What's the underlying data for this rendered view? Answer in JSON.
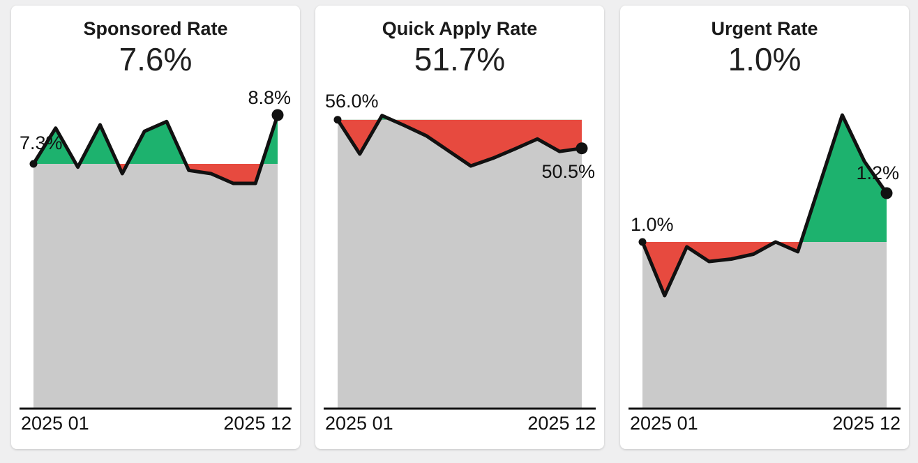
{
  "page": {
    "background_color": "#efeff0",
    "card_color": "#ffffff"
  },
  "colors": {
    "positive_area": "#1db26e",
    "negative_area": "#e74a3f",
    "base_area": "#cacaca",
    "line": "#111111",
    "text": "#1a1a1a"
  },
  "chart_data": [
    {
      "type": "area",
      "title": "Sponsored Rate",
      "current_value_label": "7.6%",
      "first_point_label": "7.3%",
      "last_point_label": "8.8%",
      "x_axis_start_label": "2025 01",
      "x_axis_end_label": "2025 12",
      "x": [
        "2025-01",
        "2025-02",
        "2025-03",
        "2025-04",
        "2025-05",
        "2025-06",
        "2025-07",
        "2025-08",
        "2025-09",
        "2025-10",
        "2025-11",
        "2025-12"
      ],
      "values": [
        7.3,
        8.4,
        7.2,
        8.5,
        7.0,
        8.3,
        8.6,
        7.1,
        7.0,
        6.7,
        6.7,
        8.8
      ],
      "baseline": 7.3,
      "unit": "%",
      "legend": "area above baseline green, below baseline red, under line gray",
      "grid": false
    },
    {
      "type": "area",
      "title": "Quick Apply Rate",
      "current_value_label": "51.7%",
      "first_point_label": "56.0%",
      "last_point_label": "50.5%",
      "x_axis_start_label": "2025 01",
      "x_axis_end_label": "2025 12",
      "x": [
        "2025-01",
        "2025-02",
        "2025-03",
        "2025-04",
        "2025-05",
        "2025-06",
        "2025-07",
        "2025-08",
        "2025-09",
        "2025-10",
        "2025-11",
        "2025-12"
      ],
      "values": [
        56.0,
        49.4,
        56.8,
        54.9,
        52.9,
        50.0,
        47.1,
        48.6,
        50.4,
        52.3,
        49.9,
        50.5
      ],
      "baseline": 56.0,
      "unit": "%",
      "legend": "area above baseline green, below baseline red, under line gray",
      "grid": false
    },
    {
      "type": "area",
      "title": "Urgent Rate",
      "current_value_label": "1.0%",
      "first_point_label": "1.0%",
      "last_point_label": "1.2%",
      "x_axis_start_label": "2025 01",
      "x_axis_end_label": "2025 12",
      "x": [
        "2025-01",
        "2025-02",
        "2025-03",
        "2025-04",
        "2025-05",
        "2025-06",
        "2025-07",
        "2025-08",
        "2025-09",
        "2025-10",
        "2025-11",
        "2025-12"
      ],
      "values": [
        1.0,
        0.78,
        0.98,
        0.92,
        0.93,
        0.95,
        1.0,
        0.96,
        1.24,
        1.52,
        1.33,
        1.2
      ],
      "baseline": 1.0,
      "unit": "%",
      "legend": "area above baseline green, below baseline red, under line gray",
      "grid": false
    }
  ]
}
